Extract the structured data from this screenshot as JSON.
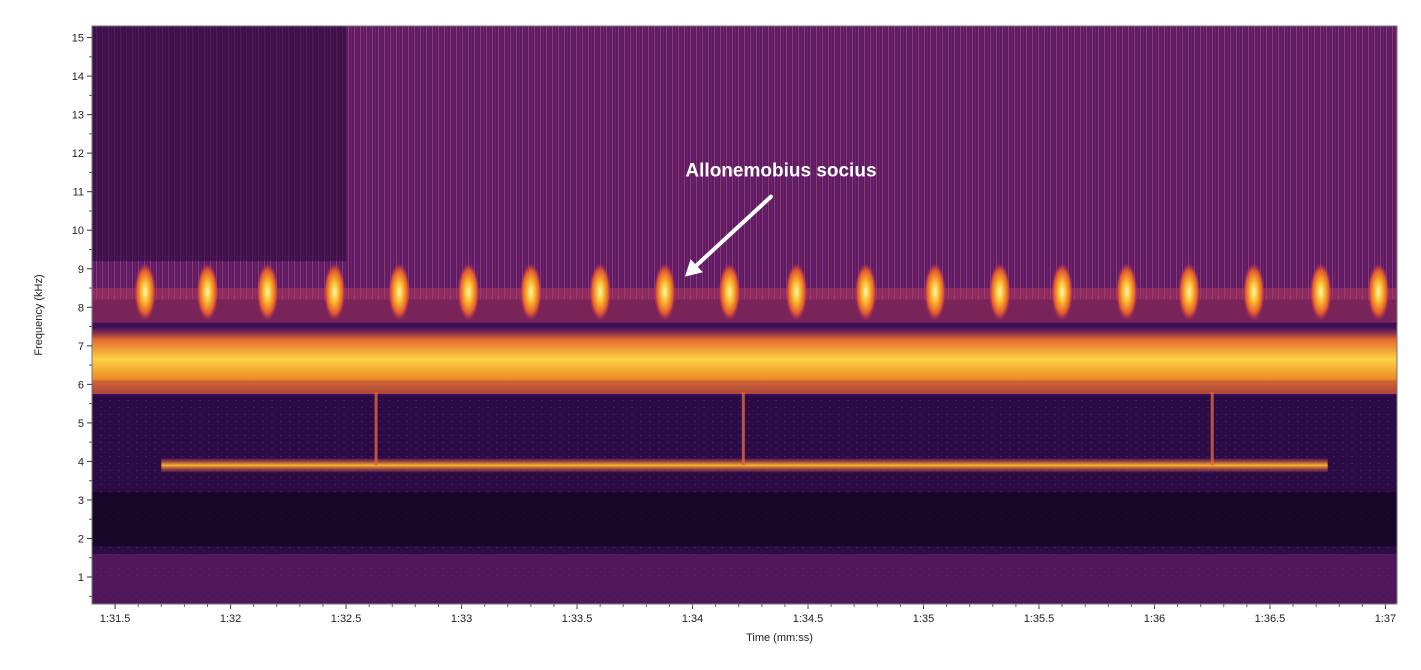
{
  "chart_data": {
    "type": "heatmap",
    "subtype": "spectrogram",
    "xlabel": "Time (mm:ss)",
    "ylabel": "Frequency (kHz)",
    "xlim_seconds": [
      91.4,
      97.05
    ],
    "ylim": [
      0.3,
      15.3
    ],
    "x_ticks": [
      {
        "t": 91.5,
        "label": "1:31.5"
      },
      {
        "t": 92.0,
        "label": "1:32"
      },
      {
        "t": 92.5,
        "label": "1:32.5"
      },
      {
        "t": 93.0,
        "label": "1:33"
      },
      {
        "t": 93.5,
        "label": "1:33.5"
      },
      {
        "t": 94.0,
        "label": "1:34"
      },
      {
        "t": 94.5,
        "label": "1:34.5"
      },
      {
        "t": 95.0,
        "label": "1:35"
      },
      {
        "t": 95.5,
        "label": "1:35.5"
      },
      {
        "t": 96.0,
        "label": "1:36"
      },
      {
        "t": 96.5,
        "label": "1:36.5"
      },
      {
        "t": 97.0,
        "label": "1:37"
      }
    ],
    "y_ticks": [
      1,
      2,
      3,
      4,
      5,
      6,
      7,
      8,
      9,
      10,
      11,
      12,
      13,
      14,
      15
    ],
    "colormap": "inferno",
    "features": {
      "continuous_band": {
        "f_low": 6.0,
        "f_high": 7.2,
        "intensity": "high"
      },
      "tonal_line": {
        "f": 3.9,
        "t_start": 91.7,
        "t_end": 96.75
      },
      "pulses": {
        "f_low": 7.8,
        "f_high": 9.0,
        "times": [
          91.63,
          91.9,
          92.16,
          92.45,
          92.73,
          93.03,
          93.3,
          93.6,
          93.88,
          94.16,
          94.45,
          94.75,
          95.05,
          95.33,
          95.6,
          95.88,
          96.15,
          96.43,
          96.72,
          96.97
        ]
      },
      "transients": [
        92.63,
        94.22,
        96.25
      ]
    },
    "annotations": [
      {
        "text": "Allonemobius socius",
        "target_t": 93.95,
        "target_f": 8.9
      }
    ]
  }
}
